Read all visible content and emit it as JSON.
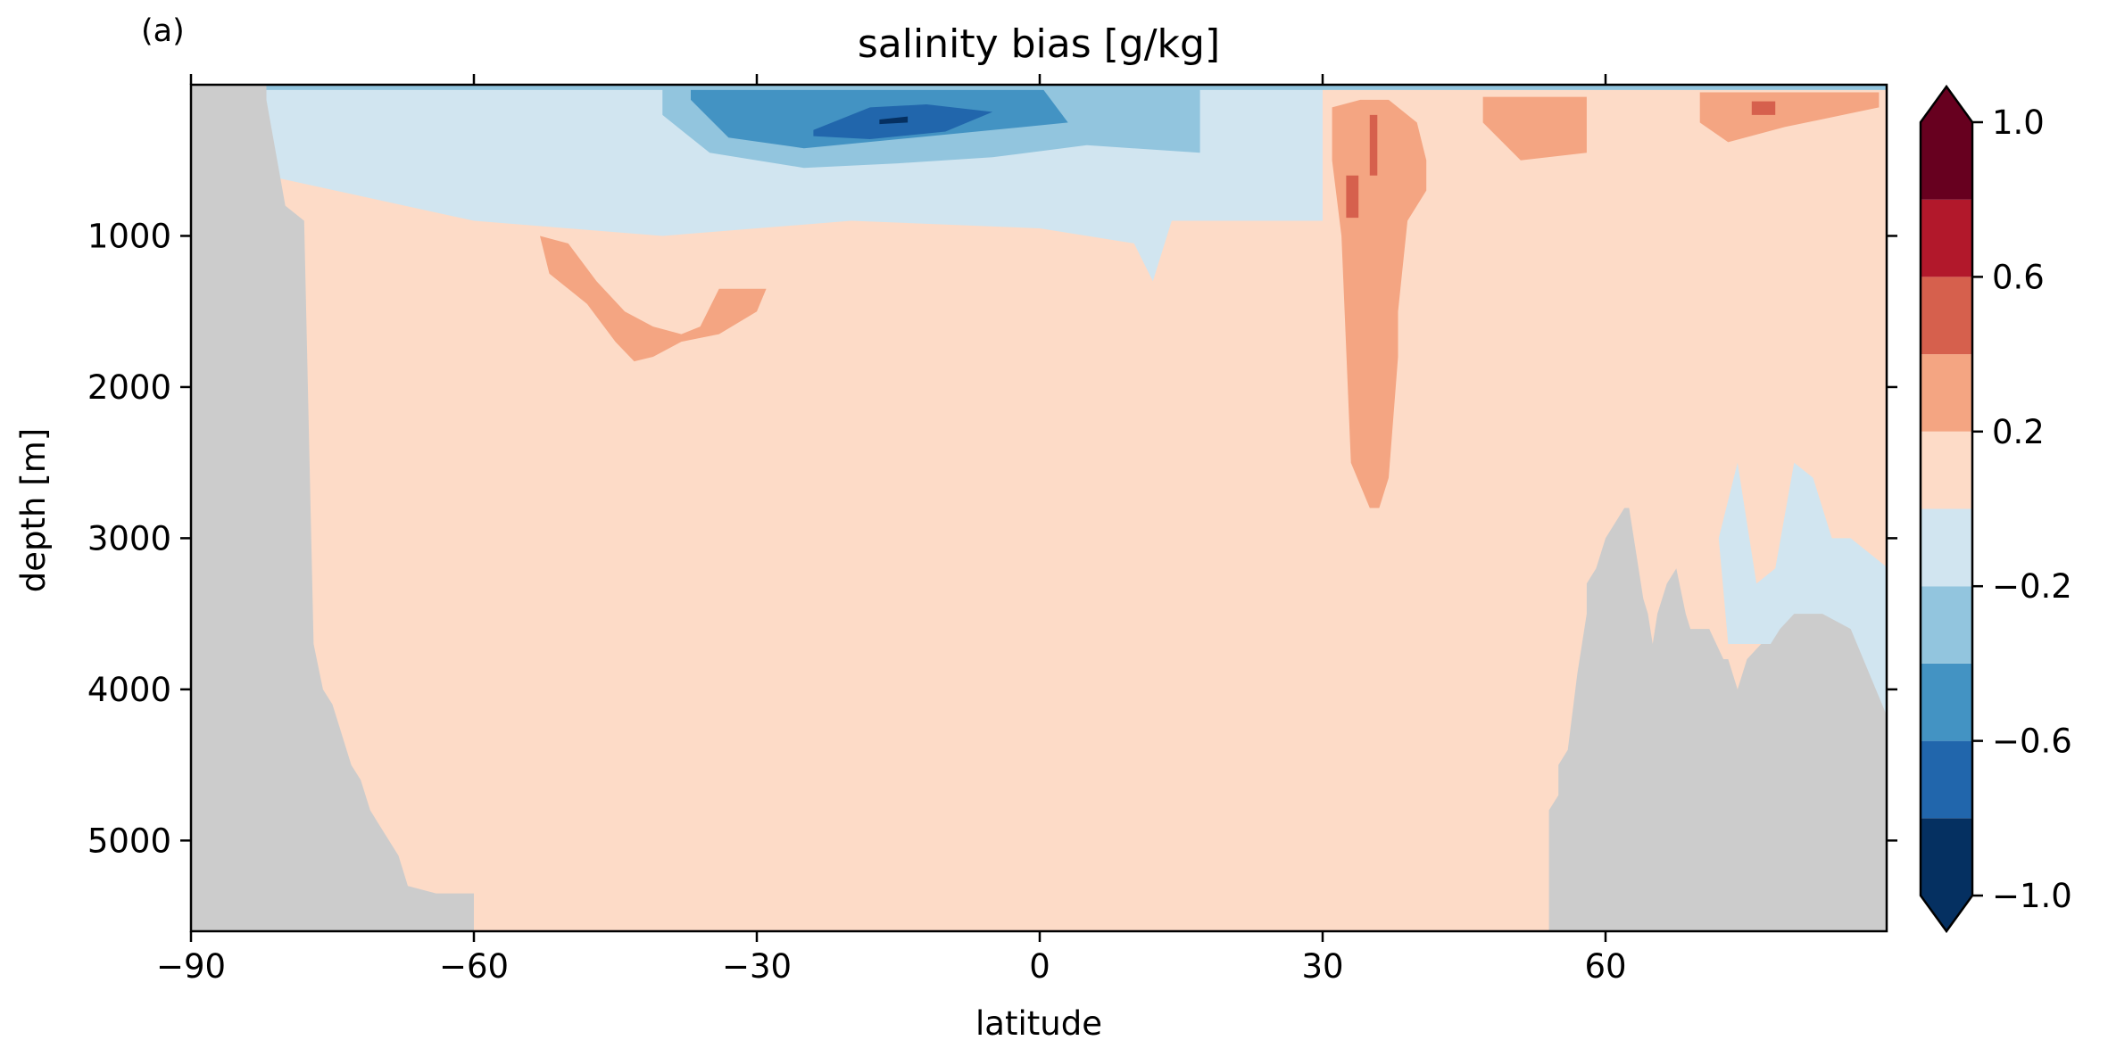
{
  "panel_label": "(a)",
  "chart_data": {
    "type": "heatmap",
    "title": "salinity bias [g/kg]",
    "xlabel": "latitude",
    "ylabel": "depth [m]",
    "xlim": [
      -90,
      90
    ],
    "ylim": [
      5600,
      0
    ],
    "y_inverted": true,
    "x_ticks": [
      -90,
      -60,
      -30,
      0,
      30,
      60
    ],
    "x_tick_labels": [
      "−90",
      "−60",
      "−30",
      "0",
      "30",
      "60"
    ],
    "y_ticks": [
      1000,
      2000,
      3000,
      4000,
      5000
    ],
    "y_tick_labels": [
      "1000",
      "2000",
      "3000",
      "4000",
      "5000"
    ],
    "grid": false,
    "colorbar": {
      "orientation": "vertical",
      "position": "right",
      "extend": "both",
      "levels": [
        -1.0,
        -0.8,
        -0.6,
        -0.4,
        -0.2,
        0.0,
        0.2,
        0.4,
        0.6,
        0.8,
        1.0
      ],
      "colors": [
        "#053061",
        "#2166ac",
        "#4393c3",
        "#92c5de",
        "#d1e5f0",
        "#fddbc7",
        "#f4a582",
        "#d6604d",
        "#b2182b",
        "#67001f"
      ],
      "tick_values": [
        -1.0,
        -0.6,
        -0.2,
        0.2,
        0.6,
        1.0
      ],
      "tick_labels": [
        "−1.0",
        "−0.6",
        "−0.2",
        "0.2",
        "0.6",
        "1.0"
      ]
    },
    "background_bias_range": [
      0.0,
      0.2
    ],
    "land_color": "#cccccc",
    "features": [
      {
        "name": "southern-ocean-shelf-bottom",
        "kind": "land",
        "lat": [
          -90,
          -82,
          -82,
          -80,
          -78,
          -77,
          -76,
          -75,
          -74,
          -73,
          -72,
          -71,
          -70,
          -68,
          -67,
          -64,
          -60,
          -60,
          -90
        ],
        "depth": [
          0,
          0,
          100,
          800,
          900,
          3700,
          4000,
          4100,
          4300,
          4500,
          4600,
          4800,
          4900,
          5100,
          5300,
          5350,
          5350,
          5600,
          5600
        ]
      },
      {
        "name": "northern-bottom-topography",
        "kind": "land",
        "lat": [
          54,
          54,
          55,
          55,
          56,
          57,
          58,
          58,
          59,
          60,
          61,
          62,
          62.5,
          63,
          63.5,
          64,
          64.5,
          65,
          65.5,
          66.5,
          67.5,
          68.5,
          69,
          71,
          72.5,
          73,
          74,
          75,
          76.5,
          77.5,
          78.5,
          80,
          83,
          86,
          90,
          90,
          54
        ],
        "depth": [
          5600,
          4800,
          4700,
          4500,
          4400,
          3900,
          3500,
          3300,
          3200,
          3000,
          2900,
          2800,
          2800,
          3000,
          3200,
          3400,
          3500,
          3700,
          3500,
          3300,
          3200,
          3500,
          3600,
          3600,
          3800,
          3800,
          4000,
          3800,
          3700,
          3700,
          3600,
          3500,
          3500,
          3600,
          4200,
          5600,
          5600
        ]
      },
      {
        "name": "subtropical-surface-freshening",
        "kind": "contour",
        "bias": -0.2,
        "lat": [
          -82,
          -60,
          -40,
          -20,
          0,
          10,
          20,
          30,
          30,
          14,
          12,
          10,
          0,
          -20,
          -40,
          -60,
          -82
        ],
        "depth": [
          0,
          0,
          0,
          0,
          0,
          0,
          0,
          0,
          900,
          900,
          1300,
          1050,
          950,
          900,
          1000,
          900,
          600
        ]
      },
      {
        "name": "subtropical-surface-freshening",
        "kind": "contour",
        "bias": -0.4,
        "lat": [
          -40,
          -35,
          -25,
          -15,
          -5,
          5,
          10,
          17,
          17,
          5,
          -5,
          -15,
          -25,
          -35,
          -40
        ],
        "depth": [
          0,
          0,
          0,
          0,
          0,
          0,
          0,
          0,
          450,
          400,
          480,
          520,
          550,
          450,
          200
        ]
      },
      {
        "name": "subtropical-surface-freshening",
        "kind": "contour",
        "bias": -0.6,
        "lat": [
          -37,
          -30,
          -20,
          -10,
          0,
          3,
          -5,
          -15,
          -25,
          -33,
          -37
        ],
        "depth": [
          0,
          0,
          0,
          0,
          0,
          250,
          300,
          360,
          420,
          350,
          100
        ]
      },
      {
        "name": "subtropical-surface-freshening",
        "kind": "contour",
        "bias": -0.8,
        "lat": [
          -24,
          -18,
          -12,
          -5,
          -10,
          -18,
          -24
        ],
        "depth": [
          300,
          150,
          130,
          180,
          310,
          360,
          340
        ]
      },
      {
        "name": "subtropical-surface-freshening",
        "kind": "contour",
        "bias": -1.0,
        "lat": [
          -17,
          -14,
          -14,
          -17
        ],
        "depth": [
          230,
          210,
          250,
          260
        ]
      },
      {
        "name": "intermediate-water-salty-bias",
        "kind": "contour",
        "bias": 0.2,
        "lat": [
          -53,
          -50,
          -47,
          -44,
          -41,
          -38,
          -36,
          -34,
          -29,
          -30,
          -34,
          -38,
          -41,
          -43,
          -45,
          -48,
          -52,
          -53
        ],
        "depth": [
          1000,
          1050,
          1300,
          1500,
          1600,
          1650,
          1600,
          1350,
          1350,
          1500,
          1650,
          1700,
          1800,
          1830,
          1700,
          1450,
          1250,
          1000
        ]
      },
      {
        "name": "mediterranean-outflow-salty-bias",
        "kind": "contour",
        "bias": 0.2,
        "lat": [
          31,
          34,
          37,
          40,
          41,
          41,
          39,
          38,
          38,
          37,
          36,
          35,
          33,
          32,
          31
        ],
        "depth": [
          150,
          100,
          100,
          250,
          500,
          700,
          900,
          1500,
          1800,
          2600,
          2800,
          2800,
          2500,
          1000,
          500
        ]
      },
      {
        "name": "mediterranean-outflow-core",
        "kind": "contour",
        "bias": 0.4,
        "lat": [
          35,
          35.8,
          35.8,
          35
        ],
        "depth": [
          200,
          200,
          600,
          600
        ]
      },
      {
        "name": "mediterranean-outflow-core",
        "kind": "contour",
        "bias": 0.4,
        "lat": [
          32.5,
          33.8,
          33.8,
          32.5
        ],
        "depth": [
          600,
          600,
          880,
          880
        ]
      },
      {
        "name": "north-atlantic-salty-bias",
        "kind": "contour",
        "bias": 0.2,
        "lat": [
          47,
          58,
          58,
          51,
          47
        ],
        "depth": [
          80,
          80,
          450,
          500,
          250
        ]
      },
      {
        "name": "high-latitude-salty-bias",
        "kind": "contour",
        "bias": 0.2,
        "lat": [
          70,
          89,
          89,
          79,
          73,
          70
        ],
        "depth": [
          50,
          50,
          150,
          280,
          380,
          250
        ]
      },
      {
        "name": "high-latitude-salty-core",
        "kind": "contour",
        "bias": 0.4,
        "lat": [
          75.5,
          78,
          78,
          75.5
        ],
        "depth": [
          110,
          110,
          200,
          200
        ]
      },
      {
        "name": "northern-deep-freshening",
        "kind": "contour",
        "bias": -0.2,
        "lat": [
          72,
          74,
          76,
          78,
          80,
          82,
          84,
          86,
          90,
          90,
          86,
          83,
          80,
          77,
          73,
          72
        ],
        "depth": [
          3000,
          2500,
          3300,
          3200,
          2500,
          2600,
          3000,
          3000,
          3200,
          4500,
          4500,
          4100,
          3800,
          3700,
          3700,
          3000
        ]
      },
      {
        "name": "arctic-surface-freshening",
        "kind": "contour",
        "bias": -0.4,
        "lat": [
          -82,
          90,
          90,
          -82
        ],
        "depth": [
          0,
          0,
          35,
          35
        ]
      }
    ]
  }
}
